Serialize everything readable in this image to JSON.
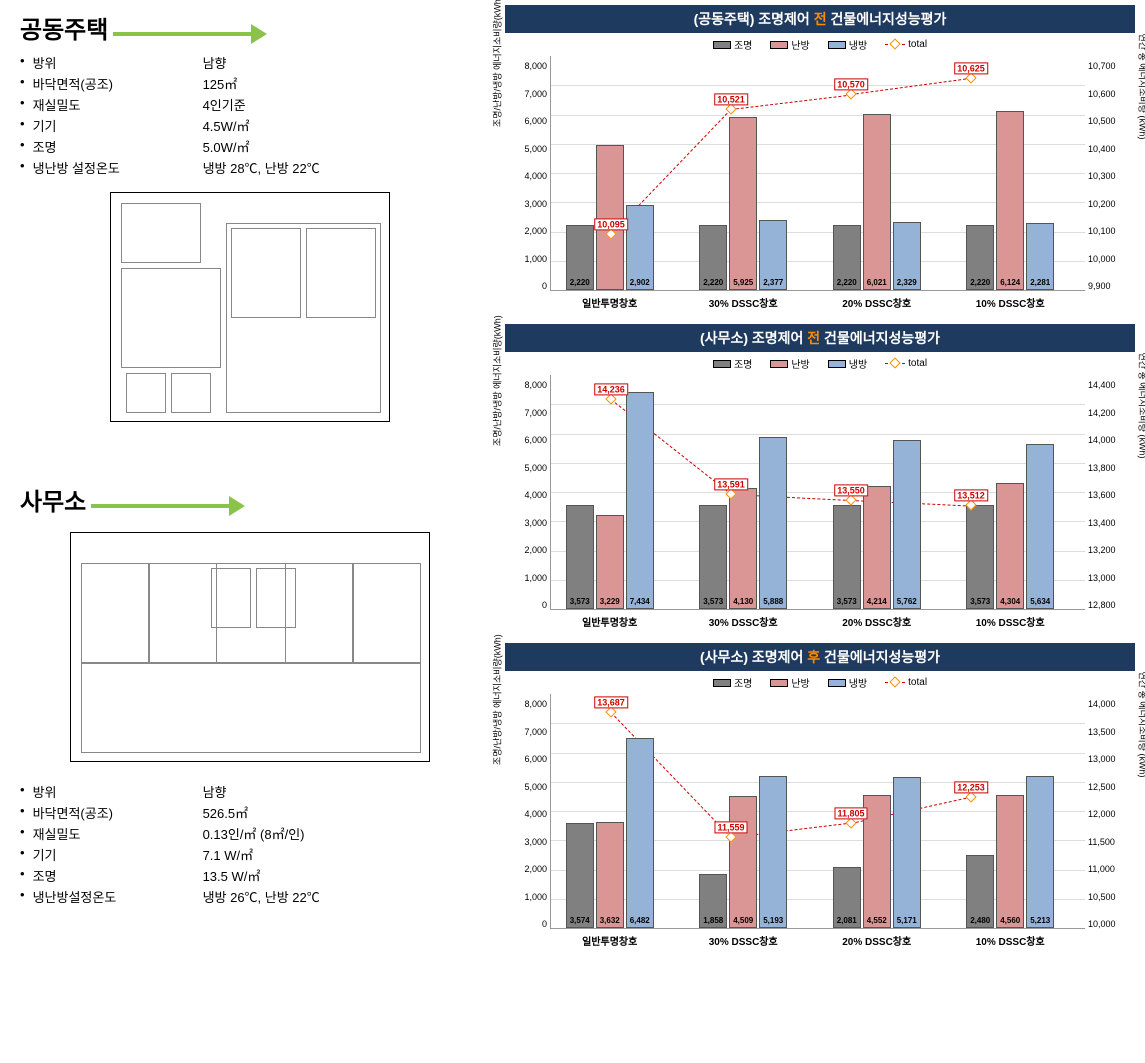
{
  "left": {
    "section1_title": "공동주택",
    "section2_title": "사무소",
    "specs1": [
      {
        "label": "방위",
        "value": "남향"
      },
      {
        "label": "바닥면적(공조)",
        "value": "125㎡"
      },
      {
        "label": "재실밀도",
        "value": "4인기준"
      },
      {
        "label": "기기",
        "value": "4.5W/㎡"
      },
      {
        "label": "조명",
        "value": "5.0W/㎡"
      },
      {
        "label": "냉난방 설정온도",
        "value": "냉방 28℃, 난방 22℃"
      }
    ],
    "specs2": [
      {
        "label": "방위",
        "value": "남향"
      },
      {
        "label": "바닥면적(공조)",
        "value": "526.5㎡"
      },
      {
        "label": "재실밀도",
        "value": "0.13인/㎡ (8㎡/인)"
      },
      {
        "label": "기기",
        "value": "7.1 W/㎡"
      },
      {
        "label": "조명",
        "value": "13.5 W/㎡"
      },
      {
        "label": "냉난방설정온도",
        "value": "냉방 26℃, 난방 22℃"
      }
    ]
  },
  "legend": {
    "s1": "조명",
    "c1": "#808080",
    "s2": "난방",
    "c2": "#d99694",
    "s3": "냉방",
    "c3": "#95b3d7",
    "s4": "total"
  },
  "common": {
    "categories": [
      "일반투명창호",
      "30% DSSC창호",
      "20% DSSC창호",
      "10% DSSC창호"
    ],
    "ylabel_left": "조명/난방/냉방 에너지소비량(kWh)",
    "ylabel_right": "연간 총 에너지소비량 (kWh)",
    "yleft_ticks": [
      "8,000",
      "7,000",
      "6,000",
      "5,000",
      "4,000",
      "3,000",
      "2,000",
      "1,000",
      "0"
    ],
    "yleft_max": 8000
  },
  "chart1": {
    "title_pre": "(공동주택) 조명제어 ",
    "title_hl": "전",
    "title_post": " 건물에너지성능평가",
    "yright_ticks": [
      "10,700",
      "10,600",
      "10,500",
      "10,400",
      "10,300",
      "10,200",
      "10,100",
      "10,000",
      "9,900"
    ],
    "yright_min": 9900,
    "yright_max": 10700,
    "data": [
      {
        "v1": 2220,
        "v2": 4973,
        "v3": 2902,
        "total": 10095,
        "lbls": [
          "2,220",
          "",
          "2,902"
        ]
      },
      {
        "v1": 2220,
        "v2": 5925,
        "v3": 2377,
        "total": 10521,
        "lbls": [
          "2,220",
          "5,925",
          "2,377"
        ]
      },
      {
        "v1": 2220,
        "v2": 6021,
        "v3": 2329,
        "total": 10570,
        "lbls": [
          "2,220",
          "6,021",
          "2,329"
        ]
      },
      {
        "v1": 2220,
        "v2": 6124,
        "v3": 2281,
        "total": 10625,
        "lbls": [
          "2,220",
          "6,124",
          "2,281"
        ]
      }
    ],
    "total_lbls": [
      "10,095",
      "10,521",
      "10,570",
      "10,625"
    ]
  },
  "chart2": {
    "title_pre": "(사무소) 조명제어 ",
    "title_hl": "전",
    "title_post": " 건물에너지성능평가",
    "yright_ticks": [
      "14,400",
      "14,200",
      "14,000",
      "13,800",
      "13,600",
      "13,400",
      "13,200",
      "13,000",
      "12,800"
    ],
    "yright_min": 12800,
    "yright_max": 14400,
    "data": [
      {
        "v1": 3573,
        "v2": 3229,
        "v3": 7434,
        "total": 14236,
        "lbls": [
          "3,573",
          "3,229",
          "7,434"
        ]
      },
      {
        "v1": 3573,
        "v2": 4130,
        "v3": 5888,
        "total": 13591,
        "lbls": [
          "3,573",
          "4,130",
          "5,888"
        ]
      },
      {
        "v1": 3573,
        "v2": 4214,
        "v3": 5762,
        "total": 13550,
        "lbls": [
          "3,573",
          "4,214",
          "5,762"
        ]
      },
      {
        "v1": 3573,
        "v2": 4304,
        "v3": 5634,
        "total": 13512,
        "lbls": [
          "3,573",
          "4,304",
          "5,634"
        ]
      }
    ],
    "total_lbls": [
      "14,236",
      "13,591",
      "13,550",
      "13,512"
    ]
  },
  "chart3": {
    "title_pre": "(사무소) 조명제어 ",
    "title_hl": "후",
    "title_post": " 건물에너지성능평가",
    "yright_ticks": [
      "14,000",
      "13,500",
      "13,000",
      "12,500",
      "12,000",
      "11,500",
      "11,000",
      "10,500",
      "10,000"
    ],
    "yright_min": 10000,
    "yright_max": 14000,
    "data": [
      {
        "v1": 3574,
        "v2": 3632,
        "v3": 6482,
        "total": 13687,
        "lbls": [
          "3,574",
          "3,632",
          "6,482"
        ]
      },
      {
        "v1": 1858,
        "v2": 4509,
        "v3": 5193,
        "total": 11559,
        "lbls": [
          "1,858",
          "4,509",
          "5,193"
        ]
      },
      {
        "v1": 2081,
        "v2": 4552,
        "v3": 5171,
        "total": 11805,
        "lbls": [
          "2,081",
          "4,552",
          "5,171"
        ]
      },
      {
        "v1": 2480,
        "v2": 4560,
        "v3": 5213,
        "total": 12253,
        "lbls": [
          "2,480",
          "4,560",
          "5,213"
        ]
      }
    ],
    "total_lbls": [
      "13,687",
      "11,559",
      "11,805",
      "12,253"
    ]
  }
}
